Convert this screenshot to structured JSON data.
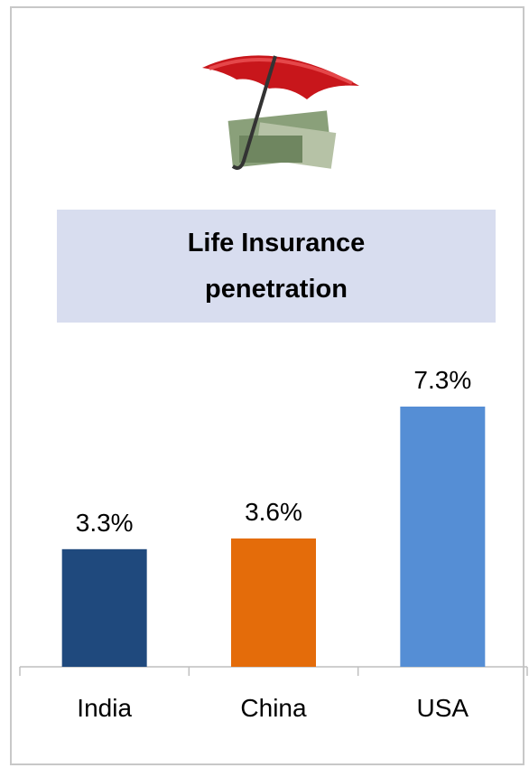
{
  "chart_data": {
    "type": "bar",
    "title": "Life Insurance penetration",
    "categories": [
      "India",
      "China",
      "USA"
    ],
    "values": [
      3.3,
      3.6,
      7.3
    ],
    "value_labels": [
      "3.3%",
      "3.6%",
      "7.3%"
    ],
    "colors": [
      "#1f497d",
      "#e46c0a",
      "#558ed5"
    ]
  }
}
